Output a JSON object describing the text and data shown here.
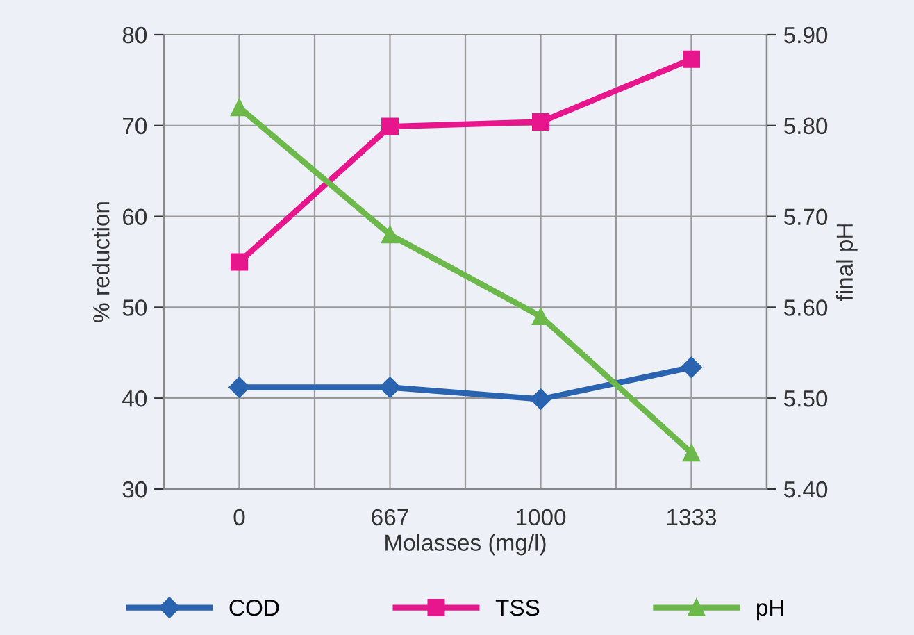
{
  "chart_data": {
    "type": "line",
    "xlabel": "Molasses (mg/l)",
    "ylabel": "% reduction",
    "y2label": "final pH",
    "categories": [
      "0",
      "667",
      "1000",
      "1333"
    ],
    "series": [
      {
        "name": "COD",
        "color": "#2a64b0",
        "marker": "diamond",
        "values": [
          41.2,
          41.2,
          39.9,
          43.4
        ]
      },
      {
        "name": "TSS",
        "color": "#e8168c",
        "marker": "square",
        "values": [
          55.0,
          69.9,
          70.4,
          77.3
        ]
      },
      {
        "name": "pH",
        "color": "#6cb84a",
        "marker": "triangle",
        "axis": "y2",
        "values": [
          5.82,
          5.68,
          5.59,
          5.44
        ]
      }
    ],
    "ylim": [
      30,
      80
    ],
    "yticks": [
      30,
      40,
      50,
      60,
      70,
      80
    ],
    "y2lim": [
      5.4,
      5.9
    ],
    "y2ticks": [
      {
        "value": 5.4,
        "label": "5.40"
      },
      {
        "value": 5.5,
        "label": "5.50"
      },
      {
        "value": 5.6,
        "label": "5.60"
      },
      {
        "value": 5.7,
        "label": "5.70"
      },
      {
        "value": 5.8,
        "label": "5.80"
      },
      {
        "value": 5.9,
        "label": "5.90"
      }
    ],
    "grid": true,
    "legend": "bottom"
  }
}
